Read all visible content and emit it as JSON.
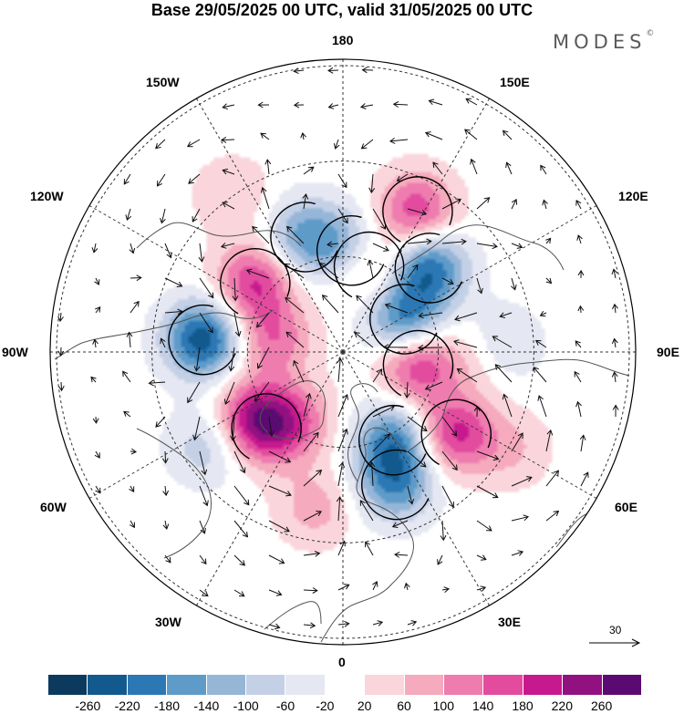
{
  "header": {
    "title": "Base 29/05/2025 00 UTC, valid 31/05/2025 00 UTC",
    "brand": "MODES",
    "brand_mark": "©"
  },
  "map": {
    "projection": "north-polar-stereographic",
    "field": "geopotential height anomaly with wind vectors",
    "longitude_labels": {
      "lon_180": "180",
      "lon_150e": "150E",
      "lon_120e": "120E",
      "lon_90e": "90E",
      "lon_60e": "60E",
      "lon_30e": "30E",
      "lon_0": "0",
      "lon_30w": "30W",
      "lon_60w": "60W",
      "lon_90w": "90W",
      "lon_120w": "120W",
      "lon_150w": "150W"
    },
    "grid_dashed": true,
    "land_outline_color": "#555555"
  },
  "vector_reference": {
    "value": "30",
    "unit_arrow": "right-arrow"
  },
  "colorbar": {
    "colors": [
      "#0c3a5e",
      "#125a8e",
      "#2b78b4",
      "#5f9bc9",
      "#96b6d8",
      "#c4d0e6",
      "#e5e7f2",
      "#ffffff",
      "#fad6dc",
      "#f5aabd",
      "#ee7cae",
      "#e24b9e",
      "#c6198f",
      "#921181",
      "#5c0a73"
    ],
    "labels": [
      "-260",
      "-220",
      "-180",
      "-140",
      "-100",
      "-60",
      "-20",
      "20",
      "60",
      "100",
      "140",
      "180",
      "220",
      "260"
    ]
  },
  "anomaly_centers": [
    {
      "lon": 152,
      "lat": 40,
      "value": 175
    },
    {
      "lon": 134,
      "lat": 52,
      "value": -215
    },
    {
      "lon": 163,
      "lat": 62,
      "value": 150
    },
    {
      "lon": 175,
      "lat": 58,
      "value": -150
    },
    {
      "lon": -162,
      "lat": 52,
      "value": -150
    },
    {
      "lon": -128,
      "lat": 55,
      "value": 180
    },
    {
      "lon": -95,
      "lat": 46,
      "value": -250
    },
    {
      "lon": -100,
      "lat": 68,
      "value": 130
    },
    {
      "lon": 118,
      "lat": 68,
      "value": -200
    },
    {
      "lon": 88,
      "lat": 46,
      "value": 65
    },
    {
      "lon": 80,
      "lat": 66,
      "value": 185
    },
    {
      "lon": 92,
      "lat": 40,
      "value": -95
    },
    {
      "lon": 54,
      "lat": 46,
      "value": 190
    },
    {
      "lon": 30,
      "lat": 58,
      "value": -175
    },
    {
      "lon": 22,
      "lat": 45,
      "value": -170
    },
    {
      "lon": -10,
      "lat": 40,
      "value": 80
    },
    {
      "lon": -55,
      "lat": 55,
      "value": 120
    },
    {
      "lon": -45,
      "lat": 56,
      "value": 150
    },
    {
      "lon": -32,
      "lat": 64,
      "value": 100
    },
    {
      "lon": -55,
      "lat": 38,
      "value": -90
    },
    {
      "lon": 60,
      "lat": 28,
      "value": 60
    },
    {
      "lon": -145,
      "lat": 30,
      "value": 60
    }
  ]
}
